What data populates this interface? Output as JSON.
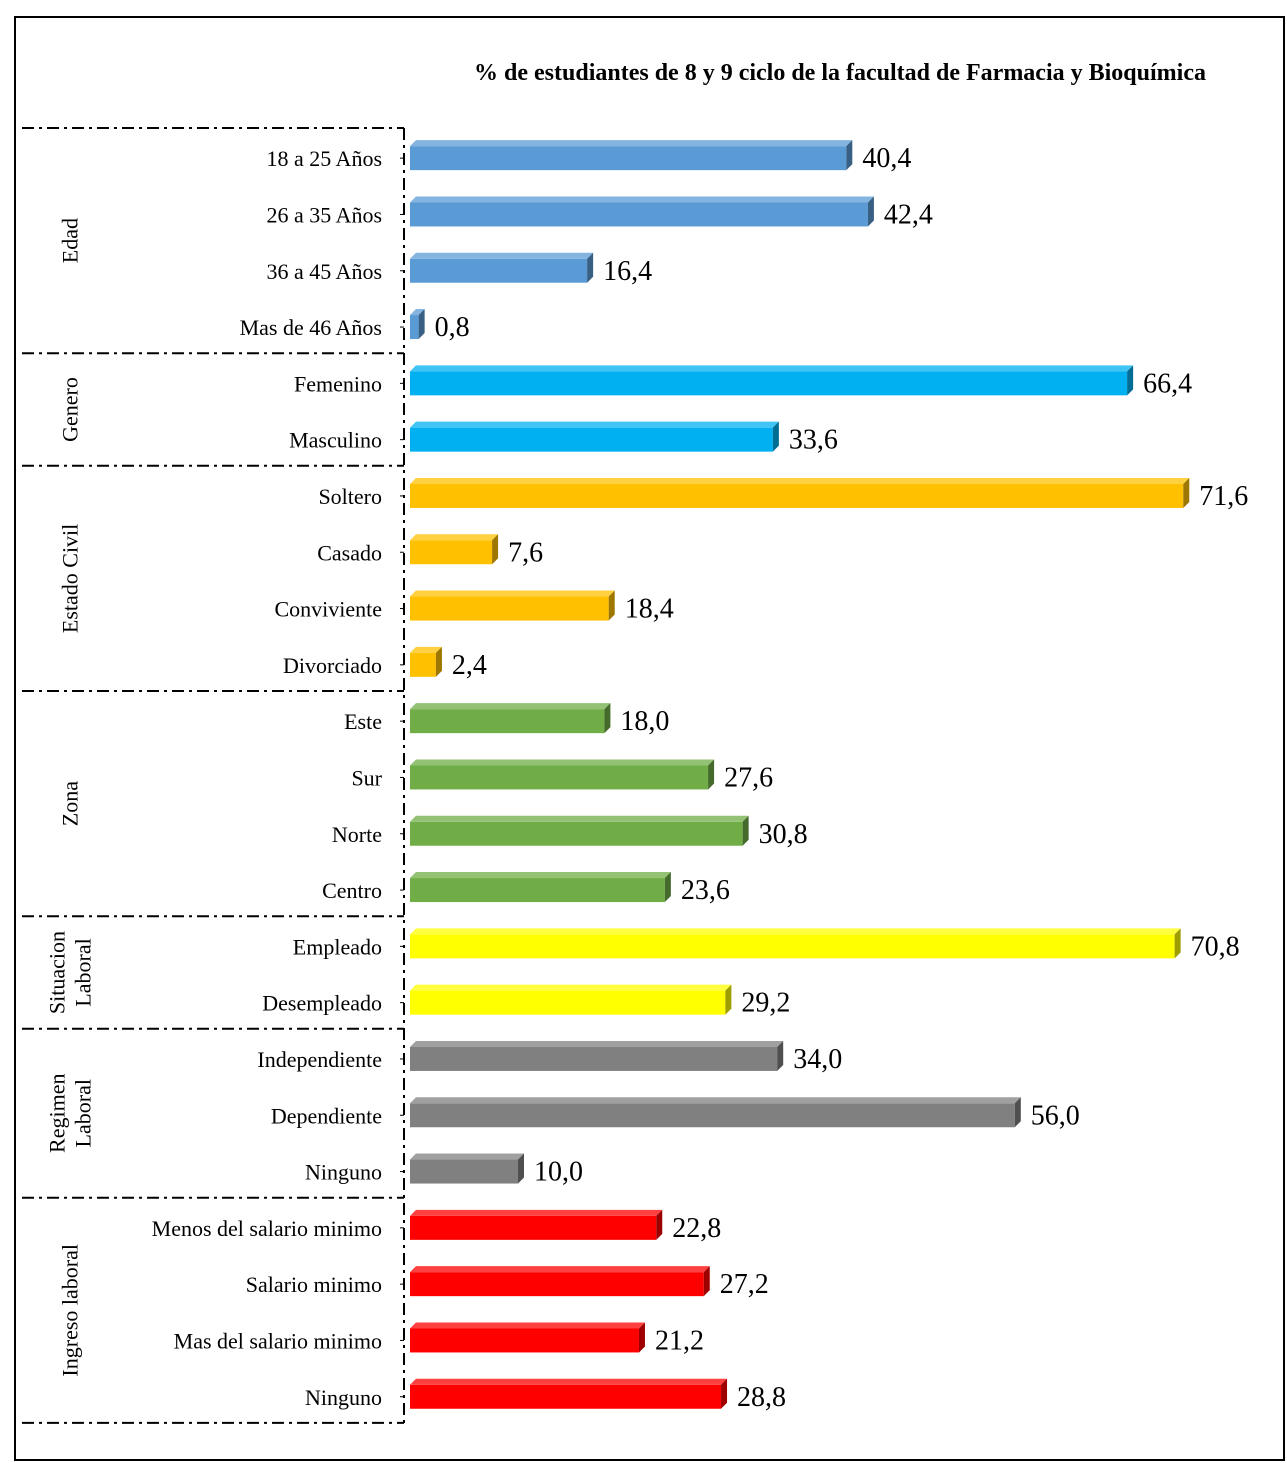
{
  "chart_data": {
    "type": "bar",
    "orientation": "horizontal",
    "title": "% de estudiantes de 8 y 9 ciclo de la facultad de Farmacia y Bioquímica",
    "groups": [
      {
        "name": "Edad",
        "label_lines": [
          "Edad"
        ],
        "color": "#5B9BD5",
        "categories": [
          "18 a 25 Años",
          "26 a 35 Años",
          "36 a 45 Años",
          "Mas de 46 Años"
        ],
        "values": [
          40.4,
          42.4,
          16.4,
          0.8
        ],
        "labels": [
          "40,4",
          "42,4",
          "16,4",
          "0,8"
        ]
      },
      {
        "name": "Genero",
        "label_lines": [
          "Genero"
        ],
        "color": "#00B0F0",
        "categories": [
          "Femenino",
          "Masculino"
        ],
        "values": [
          66.4,
          33.6
        ],
        "labels": [
          "66,4",
          "33,6"
        ]
      },
      {
        "name": "Estado Civil",
        "label_lines": [
          "Estado Civil"
        ],
        "color": "#FFC000",
        "categories": [
          "Soltero",
          "Casado",
          "Conviviente",
          "Divorciado"
        ],
        "values": [
          71.6,
          7.6,
          18.4,
          2.4
        ],
        "labels": [
          "71,6",
          "7,6",
          "18,4",
          "2,4"
        ]
      },
      {
        "name": "Zona",
        "label_lines": [
          "Zona"
        ],
        "color": "#70AD47",
        "categories": [
          "Este",
          "Sur",
          "Norte",
          "Centro"
        ],
        "values": [
          18.0,
          27.6,
          30.8,
          23.6
        ],
        "labels": [
          "18,0",
          "27,6",
          "30,8",
          "23,6"
        ]
      },
      {
        "name": "Situacion Laboral",
        "label_lines": [
          "Situacion",
          "Laboral"
        ],
        "color": "#FFFF00",
        "categories": [
          "Empleado",
          "Desempleado"
        ],
        "values": [
          70.8,
          29.2
        ],
        "labels": [
          "70,8",
          "29,2"
        ]
      },
      {
        "name": "Regimen Laboral",
        "label_lines": [
          "Regimen",
          "Laboral"
        ],
        "color": "#808080",
        "categories": [
          "Independiente",
          "Dependiente",
          "Ninguno"
        ],
        "values": [
          34.0,
          56.0,
          10.0
        ],
        "labels": [
          "34,0",
          "56,0",
          "10,0"
        ]
      },
      {
        "name": "Ingreso laboral",
        "label_lines": [
          "Ingreso laboral"
        ],
        "color": "#FF0000",
        "categories": [
          "Menos del salario minimo",
          "Salario minimo",
          "Mas del salario minimo",
          "Ninguno"
        ],
        "values": [
          22.8,
          27.2,
          21.2,
          28.8
        ],
        "labels": [
          "22,8",
          "27,2",
          "21,2",
          "28,8"
        ]
      }
    ],
    "xlim": [
      0,
      75
    ],
    "grid": false,
    "legend": "none"
  }
}
